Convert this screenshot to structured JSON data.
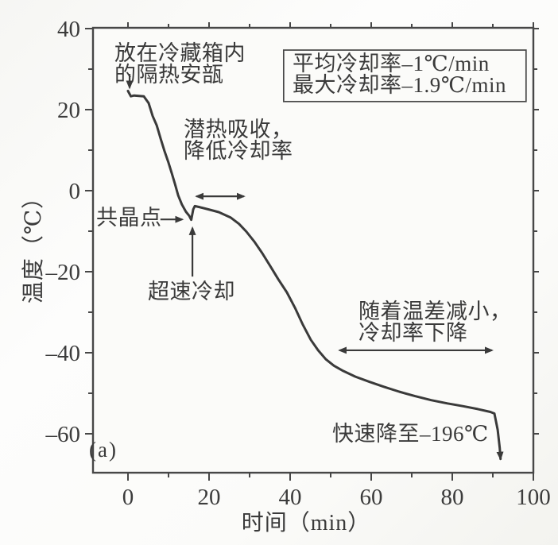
{
  "figure": {
    "panel_label": "(a)",
    "ink_color": "#3a3a3a",
    "axis_color": "#474747",
    "paper_color": "#fbfbf9"
  },
  "chart_data": {
    "type": "line",
    "title": "",
    "xlabel": "时间（min）",
    "ylabel": "温度（℃）",
    "xlim": [
      -8.6,
      100
    ],
    "ylim": [
      -69.6,
      40
    ],
    "grid": false,
    "xticks_major": [
      [
        0,
        "0"
      ],
      [
        20,
        "20"
      ],
      [
        40,
        "40"
      ],
      [
        60,
        "60"
      ],
      [
        80,
        "80"
      ],
      [
        100,
        "100"
      ]
    ],
    "xticks_minor": [
      10,
      30,
      50,
      70,
      90
    ],
    "yticks_major": [
      [
        40,
        "40"
      ],
      [
        20,
        "20"
      ],
      [
        0,
        "0"
      ],
      [
        -20,
        "–20"
      ],
      [
        -40,
        "–40"
      ],
      [
        -60,
        "–60"
      ]
    ],
    "yticks_minor": [
      30,
      10,
      -10,
      -30,
      -50
    ],
    "series": [
      {
        "name": "cooling-curve",
        "end_arrow": true,
        "points": [
          [
            0,
            24.6
          ],
          [
            0.7,
            23.3
          ],
          [
            1.5,
            23.5
          ],
          [
            3.9,
            23.3
          ],
          [
            5.1,
            21.6
          ],
          [
            6.1,
            18.4
          ],
          [
            7.1,
            16.1
          ],
          [
            8.1,
            12.7
          ],
          [
            9.0,
            9.8
          ],
          [
            10.0,
            6.9
          ],
          [
            10.8,
            4.3
          ],
          [
            11.6,
            1.6
          ],
          [
            12.4,
            -1.2
          ],
          [
            13.3,
            -3.4
          ],
          [
            14.3,
            -5.2
          ],
          [
            15.1,
            -6.2
          ],
          [
            15.6,
            -7.2
          ],
          [
            16.1,
            -4.6
          ],
          [
            16.5,
            -3.8
          ],
          [
            17.8,
            -4.1
          ],
          [
            19.8,
            -4.6
          ],
          [
            22.4,
            -5.3
          ],
          [
            25.3,
            -6.6
          ],
          [
            27.4,
            -8.2
          ],
          [
            29.2,
            -10.1
          ],
          [
            31.2,
            -12.6
          ],
          [
            33.1,
            -15.4
          ],
          [
            35.1,
            -18.6
          ],
          [
            37.1,
            -21.9
          ],
          [
            39.2,
            -25.1
          ],
          [
            41.2,
            -28.9
          ],
          [
            43.1,
            -33.0
          ],
          [
            45.1,
            -36.8
          ],
          [
            46.9,
            -39.4
          ],
          [
            48.8,
            -41.6
          ],
          [
            50.8,
            -43.2
          ],
          [
            53.1,
            -44.5
          ],
          [
            56.1,
            -45.9
          ],
          [
            59.6,
            -47.2
          ],
          [
            63.1,
            -48.4
          ],
          [
            66.9,
            -49.6
          ],
          [
            70.8,
            -50.7
          ],
          [
            74.8,
            -51.7
          ],
          [
            78.8,
            -52.5
          ],
          [
            82.7,
            -53.2
          ],
          [
            86.3,
            -53.9
          ],
          [
            89.4,
            -54.6
          ],
          [
            90.4,
            -55.0
          ],
          [
            91.2,
            -59.0
          ],
          [
            91.7,
            -63.5
          ],
          [
            91.9,
            -66.2
          ]
        ]
      }
    ],
    "legend": {
      "lines": [
        "平均冷却率–1℃/min",
        "最大冷却率–1.9℃/min"
      ],
      "box_data": [
        38.4,
        34.7,
        98.2,
        22.0
      ]
    },
    "annotations": {
      "ampoule": {
        "lines": [
          "放在冷藏箱内",
          "的隔热安瓿"
        ]
      },
      "latent": {
        "lines": [
          "潜热吸收，",
          "降低冷却率"
        ]
      },
      "eutectic": {
        "text": "共晶点"
      },
      "supercool": {
        "text": "超速冷却"
      },
      "tempdiff": {
        "lines": [
          "随着温差减小，",
          "冷却率下降"
        ]
      },
      "rapid": {
        "text": "快速降至–196℃"
      }
    },
    "arrows": [
      {
        "name": "ampoule-pointer",
        "x1": 0.4,
        "y1": 28.8,
        "x2": 0.4,
        "y2": 25.4,
        "heads": "end"
      },
      {
        "name": "latent-span",
        "x1": 16.9,
        "y1": -1.4,
        "x2": 28.6,
        "y2": -1.4,
        "heads": "both"
      },
      {
        "name": "eutectic-pointer",
        "x1": 8.0,
        "y1": -7.1,
        "x2": 13.4,
        "y2": -7.1,
        "heads": "end"
      },
      {
        "name": "supercool-pointer",
        "x1": 15.9,
        "y1": -21.2,
        "x2": 15.9,
        "y2": -9.2,
        "heads": "end"
      },
      {
        "name": "tempdiff-span",
        "x1": 52.2,
        "y1": -39.4,
        "x2": 89.8,
        "y2": -39.4,
        "heads": "both"
      }
    ]
  }
}
